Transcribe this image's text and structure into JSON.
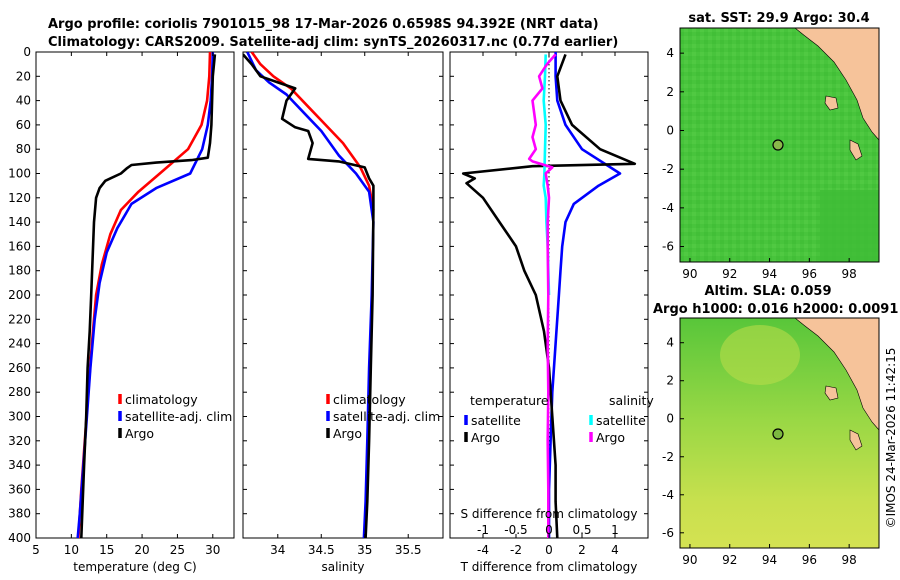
{
  "figure": {
    "title_line1": "Argo profile: coriolis 7901015_98 17-Mar-2026 0.6598S 94.392E (NRT data)",
    "title_line2": "Climatology: CARS2009. Satellite-adj clim: synTS_20260317.nc (0.77d earlier)",
    "watermark": "©IMOS 24-Mar-2026 11:42:15"
  },
  "colors": {
    "climatology": "#ff0000",
    "satellite": "#0000ff",
    "argo": "#000000",
    "sat_salinity": "#00ffff",
    "argo_salinity": "#ff00ff",
    "land": "#f6c39a"
  },
  "chart_data": [
    {
      "id": "temperature",
      "type": "line",
      "xlabel": "temperature (deg C)",
      "xlim": [
        5,
        33
      ],
      "xticks": [
        5,
        10,
        15,
        20,
        25,
        30
      ],
      "ylim": [
        0,
        400
      ],
      "yticks": [
        0,
        20,
        40,
        60,
        80,
        100,
        120,
        140,
        160,
        180,
        200,
        220,
        240,
        260,
        280,
        300,
        320,
        340,
        360,
        380,
        400
      ],
      "legend": [
        "climatology",
        "satellite-adj. clim",
        "Argo"
      ],
      "legend_position": "lower-right",
      "series": [
        {
          "name": "climatology",
          "color": "#ff0000",
          "points": [
            [
              29.6,
              0
            ],
            [
              29.5,
              20
            ],
            [
              29.2,
              40
            ],
            [
              28.4,
              60
            ],
            [
              26.5,
              80
            ],
            [
              22.5,
              100
            ],
            [
              19.5,
              115
            ],
            [
              17.0,
              130
            ],
            [
              15.5,
              150
            ],
            [
              14.3,
              175
            ],
            [
              13.5,
              200
            ],
            [
              12.9,
              240
            ],
            [
              12.4,
              280
            ],
            [
              11.9,
              320
            ],
            [
              11.4,
              360
            ],
            [
              11.0,
              400
            ]
          ]
        },
        {
          "name": "satellite-adj. clim",
          "color": "#0000ff",
          "points": [
            [
              30.0,
              0
            ],
            [
              29.9,
              20
            ],
            [
              29.7,
              40
            ],
            [
              29.3,
              60
            ],
            [
              28.5,
              80
            ],
            [
              26.8,
              100
            ],
            [
              22.0,
              112
            ],
            [
              18.5,
              125
            ],
            [
              16.5,
              145
            ],
            [
              15.0,
              165
            ],
            [
              14.0,
              190
            ],
            [
              13.3,
              220
            ],
            [
              12.7,
              260
            ],
            [
              12.2,
              300
            ],
            [
              11.7,
              340
            ],
            [
              11.2,
              380
            ],
            [
              10.9,
              400
            ]
          ]
        },
        {
          "name": "Argo",
          "color": "#000000",
          "points": [
            [
              30.3,
              2
            ],
            [
              30.0,
              20
            ],
            [
              29.9,
              40
            ],
            [
              29.8,
              60
            ],
            [
              29.6,
              75
            ],
            [
              29.3,
              87
            ],
            [
              27.0,
              89
            ],
            [
              22.0,
              91
            ],
            [
              18.5,
              93
            ],
            [
              17.8,
              96
            ],
            [
              17.0,
              100
            ],
            [
              15.5,
              104
            ],
            [
              14.8,
              106
            ],
            [
              14.0,
              112
            ],
            [
              13.5,
              120
            ],
            [
              13.2,
              140
            ],
            [
              13.0,
              170
            ],
            [
              12.8,
              200
            ],
            [
              12.6,
              230
            ],
            [
              12.3,
              260
            ],
            [
              12.1,
              300
            ],
            [
              11.8,
              340
            ],
            [
              11.6,
              370
            ],
            [
              11.4,
              400
            ]
          ]
        }
      ]
    },
    {
      "id": "salinity",
      "type": "line",
      "xlabel": "salinity",
      "xlim": [
        33.6,
        35.9
      ],
      "xticks": [
        34,
        34.5,
        35,
        35.5
      ],
      "ylim": [
        0,
        400
      ],
      "legend": [
        "climatology",
        "satellite-adj. clim",
        "Argo"
      ],
      "legend_position": "lower-right",
      "series": [
        {
          "name": "climatology",
          "color": "#ff0000",
          "points": [
            [
              33.7,
              0
            ],
            [
              33.8,
              10
            ],
            [
              33.95,
              20
            ],
            [
              34.15,
              30
            ],
            [
              34.35,
              45
            ],
            [
              34.55,
              60
            ],
            [
              34.75,
              75
            ],
            [
              34.95,
              95
            ],
            [
              35.05,
              110
            ],
            [
              35.1,
              130
            ]
          ]
        },
        {
          "name": "satellite-adj. clim",
          "color": "#0000ff",
          "points": [
            [
              33.65,
              0
            ],
            [
              33.75,
              15
            ],
            [
              33.9,
              25
            ],
            [
              34.1,
              35
            ],
            [
              34.3,
              50
            ],
            [
              34.5,
              65
            ],
            [
              34.7,
              85
            ],
            [
              34.9,
              100
            ],
            [
              35.05,
              115
            ],
            [
              35.1,
              140
            ],
            [
              35.08,
              200
            ],
            [
              35.05,
              260
            ],
            [
              35.03,
              320
            ],
            [
              35.01,
              370
            ],
            [
              34.99,
              400
            ]
          ]
        },
        {
          "name": "Argo",
          "color": "#000000",
          "points": [
            [
              33.6,
              2
            ],
            [
              33.7,
              10
            ],
            [
              33.8,
              20
            ],
            [
              34.0,
              25
            ],
            [
              34.2,
              30
            ],
            [
              34.1,
              40
            ],
            [
              34.05,
              55
            ],
            [
              34.2,
              62
            ],
            [
              34.35,
              65
            ],
            [
              34.4,
              75
            ],
            [
              34.35,
              88
            ],
            [
              34.7,
              90
            ],
            [
              35.0,
              95
            ],
            [
              35.05,
              104
            ],
            [
              35.1,
              110
            ],
            [
              35.1,
              130
            ],
            [
              35.09,
              200
            ],
            [
              35.07,
              260
            ],
            [
              35.05,
              320
            ],
            [
              35.03,
              370
            ],
            [
              35.01,
              400
            ]
          ]
        }
      ]
    },
    {
      "id": "difference",
      "type": "line",
      "xlabel": "T difference from climatology",
      "xlabel_top": "S difference from climatology",
      "xlim": [
        -6,
        6
      ],
      "xticks": [
        -4,
        -2,
        0,
        2,
        4
      ],
      "xticks_top": [
        -1,
        -0.5,
        0,
        0.5,
        1
      ],
      "xticks_top_labels": [
        "-1",
        "-0.5",
        "0",
        "0.5",
        "1"
      ],
      "ylim": [
        0,
        400
      ],
      "legend_temp_heading": "temperature",
      "legend_sal_heading": "salinity",
      "legend_temp": [
        "satellite",
        "Argo"
      ],
      "legend_sal": [
        "satellite",
        "Argo"
      ],
      "legend_position": "lower-right",
      "series": [
        {
          "name": "satellite",
          "color": "#0000ff",
          "points": [
            [
              0.4,
              0
            ],
            [
              0.4,
              20
            ],
            [
              0.5,
              40
            ],
            [
              1.0,
              60
            ],
            [
              2.0,
              80
            ],
            [
              4.3,
              100
            ],
            [
              3.0,
              110
            ],
            [
              1.5,
              125
            ],
            [
              1.0,
              140
            ],
            [
              0.8,
              160
            ],
            [
              0.7,
              180
            ],
            [
              0.6,
              200
            ],
            [
              0.4,
              240
            ],
            [
              0.2,
              280
            ],
            [
              0.1,
              320
            ],
            [
              0.0,
              360
            ],
            [
              0.0,
              400
            ]
          ]
        },
        {
          "name": "Argo",
          "color": "#000000",
          "points": [
            [
              1.0,
              2
            ],
            [
              0.5,
              20
            ],
            [
              0.7,
              40
            ],
            [
              1.4,
              60
            ],
            [
              3.1,
              80
            ],
            [
              5.2,
              92
            ],
            [
              -1.0,
              94
            ],
            [
              -5.2,
              100
            ],
            [
              -4.5,
              104
            ],
            [
              -5.0,
              108
            ],
            [
              -4.0,
              120
            ],
            [
              -3.0,
              140
            ],
            [
              -2.0,
              160
            ],
            [
              -1.5,
              180
            ],
            [
              -0.8,
              200
            ],
            [
              -0.3,
              230
            ],
            [
              0.0,
              260
            ],
            [
              0.2,
              300
            ],
            [
              0.4,
              340
            ],
            [
              0.4,
              370
            ],
            [
              0.5,
              400
            ]
          ]
        },
        {
          "name": "satellite (salinity)",
          "color": "#00ffff",
          "points": [
            [
              -0.05,
              2
            ],
            [
              -0.06,
              20
            ],
            [
              -0.08,
              40
            ],
            [
              -0.05,
              60
            ],
            [
              -0.06,
              80
            ],
            [
              -0.07,
              100
            ],
            [
              -0.08,
              110
            ],
            [
              -0.05,
              120
            ],
            [
              -0.04,
              140
            ],
            [
              -0.02,
              160
            ],
            [
              0.0,
              200
            ]
          ]
        },
        {
          "name": "Argo (salinity)",
          "color": "#ff00ff",
          "points": [
            [
              0.1,
              2
            ],
            [
              -0.03,
              10
            ],
            [
              -0.15,
              20
            ],
            [
              -0.1,
              30
            ],
            [
              -0.25,
              40
            ],
            [
              -0.2,
              60
            ],
            [
              -0.25,
              70
            ],
            [
              -0.2,
              80
            ],
            [
              -0.3,
              88
            ],
            [
              -0.25,
              90
            ],
            [
              0.05,
              95
            ],
            [
              -0.05,
              100
            ],
            [
              -0.02,
              110
            ],
            [
              0.0,
              120
            ],
            [
              -0.02,
              140
            ],
            [
              -0.02,
              160
            ],
            [
              -0.01,
              200
            ],
            [
              -0.02,
              240
            ],
            [
              -0.01,
              280
            ],
            [
              -0.02,
              320
            ],
            [
              -0.01,
              360
            ],
            [
              -0.01,
              400
            ]
          ]
        }
      ]
    },
    {
      "id": "sst_map",
      "type": "heatmap",
      "title": "sat. SST: 29.9 Argo: 30.4",
      "xlim": [
        89.5,
        99.5
      ],
      "ylim": [
        -6.8,
        5.3
      ],
      "xticks": [
        90,
        92,
        94,
        96,
        98
      ],
      "yticks": [
        -6,
        -4,
        -2,
        0,
        2,
        4
      ],
      "marker": {
        "lon": 94.392,
        "lat": -0.6598
      }
    },
    {
      "id": "sla_map",
      "type": "heatmap",
      "title_line1": "Altim. SLA: 0.059",
      "title_line2": "Argo h1000: 0.016 h2000: 0.0091",
      "xlim": [
        89.5,
        99.5
      ],
      "ylim": [
        -6.8,
        5.3
      ],
      "xticks": [
        90,
        92,
        94,
        96,
        98
      ],
      "yticks": [
        -6,
        -4,
        -2,
        0,
        2,
        4
      ],
      "marker": {
        "lon": 94.392,
        "lat": -0.6598
      }
    }
  ]
}
